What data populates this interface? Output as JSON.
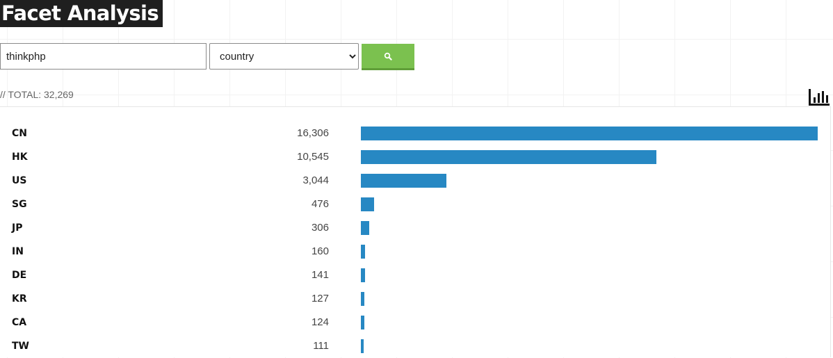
{
  "page": {
    "title": "Facet Analysis"
  },
  "search": {
    "query_value": "thinkphp",
    "facet_selected": "country",
    "button_icon": "search-icon"
  },
  "summary": {
    "total_text": "// TOTAL: 32,269"
  },
  "toolbar": {
    "chart_icon": "bar-chart-icon"
  },
  "colors": {
    "bar": "#2788c3",
    "button": "#7bc14f",
    "title_bg": "#1f1f1f"
  },
  "rows": [
    {
      "code": "CN",
      "count": "16,306",
      "value": 16306
    },
    {
      "code": "HK",
      "count": "10,545",
      "value": 10545
    },
    {
      "code": "US",
      "count": "3,044",
      "value": 3044
    },
    {
      "code": "SG",
      "count": "476",
      "value": 476
    },
    {
      "code": "JP",
      "count": "306",
      "value": 306
    },
    {
      "code": "IN",
      "count": "160",
      "value": 160
    },
    {
      "code": "DE",
      "count": "141",
      "value": 141
    },
    {
      "code": "KR",
      "count": "127",
      "value": 127
    },
    {
      "code": "CA",
      "count": "124",
      "value": 124
    },
    {
      "code": "TW",
      "count": "111",
      "value": 111
    }
  ]
}
